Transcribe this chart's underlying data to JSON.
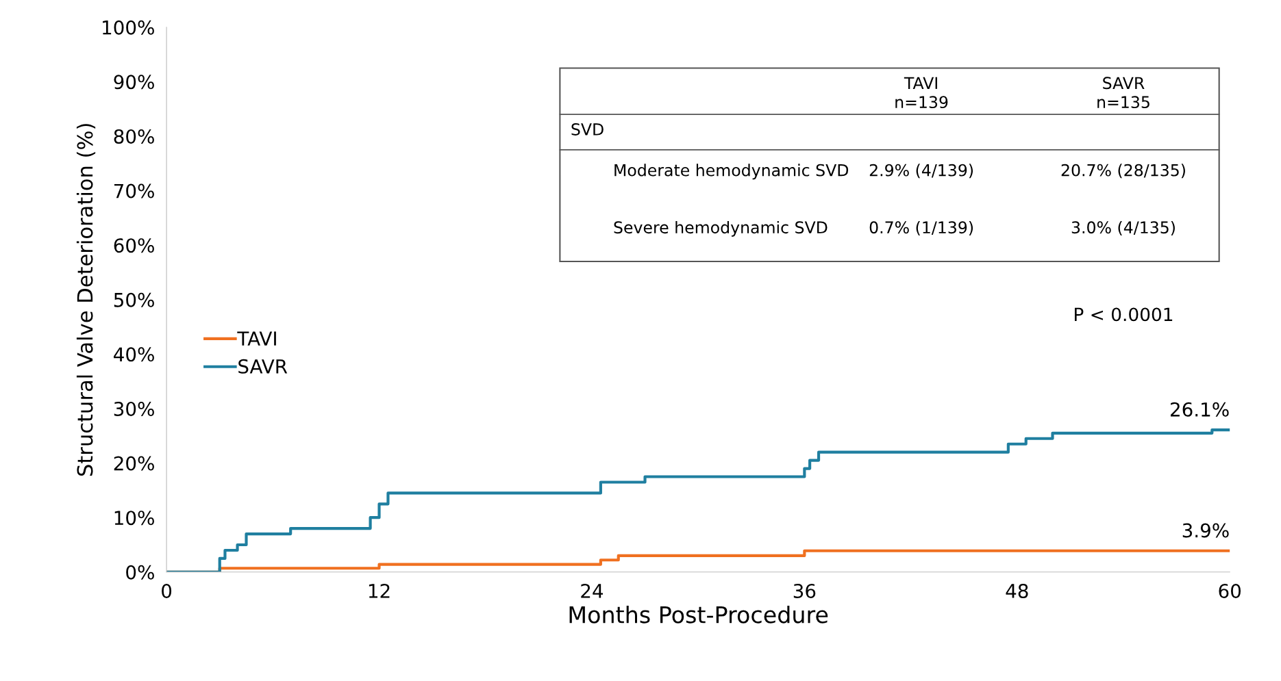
{
  "chart_data": {
    "type": "step",
    "ylabel": "Structural Valve Deterioration (%)",
    "xlabel": "Months Post-Procedure",
    "x": [
      0,
      3,
      3.3,
      4,
      4.5,
      7,
      11.5,
      12,
      12.5,
      24,
      24.5,
      25.5,
      27,
      36,
      36.3,
      36.8,
      47,
      47.5,
      48.5,
      50,
      58.5,
      59,
      60
    ],
    "series": [
      {
        "name": "TAVI",
        "color": "#f07020",
        "values": [
          0,
          0.7,
          0.7,
          0.7,
          0.7,
          0.7,
          0.7,
          1.4,
          1.4,
          1.4,
          2.2,
          3.0,
          3.0,
          3.9,
          3.9,
          3.9,
          3.9,
          3.9,
          3.9,
          3.9,
          3.9,
          3.9,
          3.9
        ]
      },
      {
        "name": "SAVR",
        "color": "#1f7fa0",
        "values": [
          0,
          2.5,
          4,
          5,
          7,
          8,
          10,
          12.5,
          14.5,
          14.5,
          16.5,
          16.5,
          17.5,
          19,
          20.5,
          22,
          22,
          23.5,
          24.5,
          25.5,
          25.5,
          26.1,
          26.1
        ]
      }
    ],
    "xlim": [
      0,
      60
    ],
    "xticks": [
      0,
      12,
      24,
      36,
      48,
      60
    ],
    "ylim": [
      0,
      100
    ],
    "yticks": [
      {
        "value": 0,
        "label": "0%"
      },
      {
        "value": 10,
        "label": "10%"
      },
      {
        "value": 20,
        "label": "20%"
      },
      {
        "value": 30,
        "label": "30%"
      },
      {
        "value": 40,
        "label": "40%"
      },
      {
        "value": 50,
        "label": "50%"
      },
      {
        "value": 60,
        "label": "60%"
      },
      {
        "value": 70,
        "label": "70%"
      },
      {
        "value": 80,
        "label": "80%"
      },
      {
        "value": 90,
        "label": "90%"
      },
      {
        "value": 100,
        "label": "100%"
      }
    ],
    "grid": false,
    "legend": "left",
    "annotations": [
      "TAVI",
      "n=139",
      "SAVR",
      "n=135",
      "SVD",
      "Moderate hemodynamic SVD",
      "2.9% (4/139)",
      "20.7% (28/135)",
      "Severe hemodynamic SVD",
      "0.7% (1/139)",
      "3.0% (4/135)",
      "P < 0.0001",
      {
        "text": "26.1%",
        "x": 60,
        "y": 26.1
      },
      {
        "text": "3.9%",
        "x": 60,
        "y": 3.9
      }
    ]
  }
}
